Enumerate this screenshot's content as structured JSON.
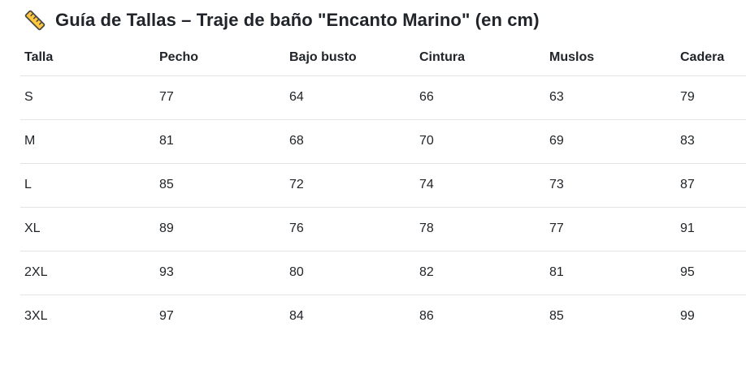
{
  "title": {
    "icon": "ruler-icon",
    "text": "Guía de Tallas – Traje de baño \"Encanto Marino\" (en cm)"
  },
  "table": {
    "columns": [
      "Talla",
      "Pecho",
      "Bajo busto",
      "Cintura",
      "Muslos",
      "Cadera"
    ],
    "rows": [
      [
        "S",
        "77",
        "64",
        "66",
        "63",
        "79"
      ],
      [
        "M",
        "81",
        "68",
        "70",
        "69",
        "83"
      ],
      [
        "L",
        "85",
        "72",
        "74",
        "73",
        "87"
      ],
      [
        "XL",
        "89",
        "76",
        "78",
        "77",
        "91"
      ],
      [
        "2XL",
        "93",
        "80",
        "82",
        "81",
        "95"
      ],
      [
        "3XL",
        "97",
        "84",
        "86",
        "85",
        "99"
      ]
    ]
  },
  "colors": {
    "text": "#212529",
    "border": "#e2e5e8",
    "background": "#ffffff",
    "ruler_fill": "#FFC83D",
    "ruler_outline": "#4a4a4a"
  }
}
